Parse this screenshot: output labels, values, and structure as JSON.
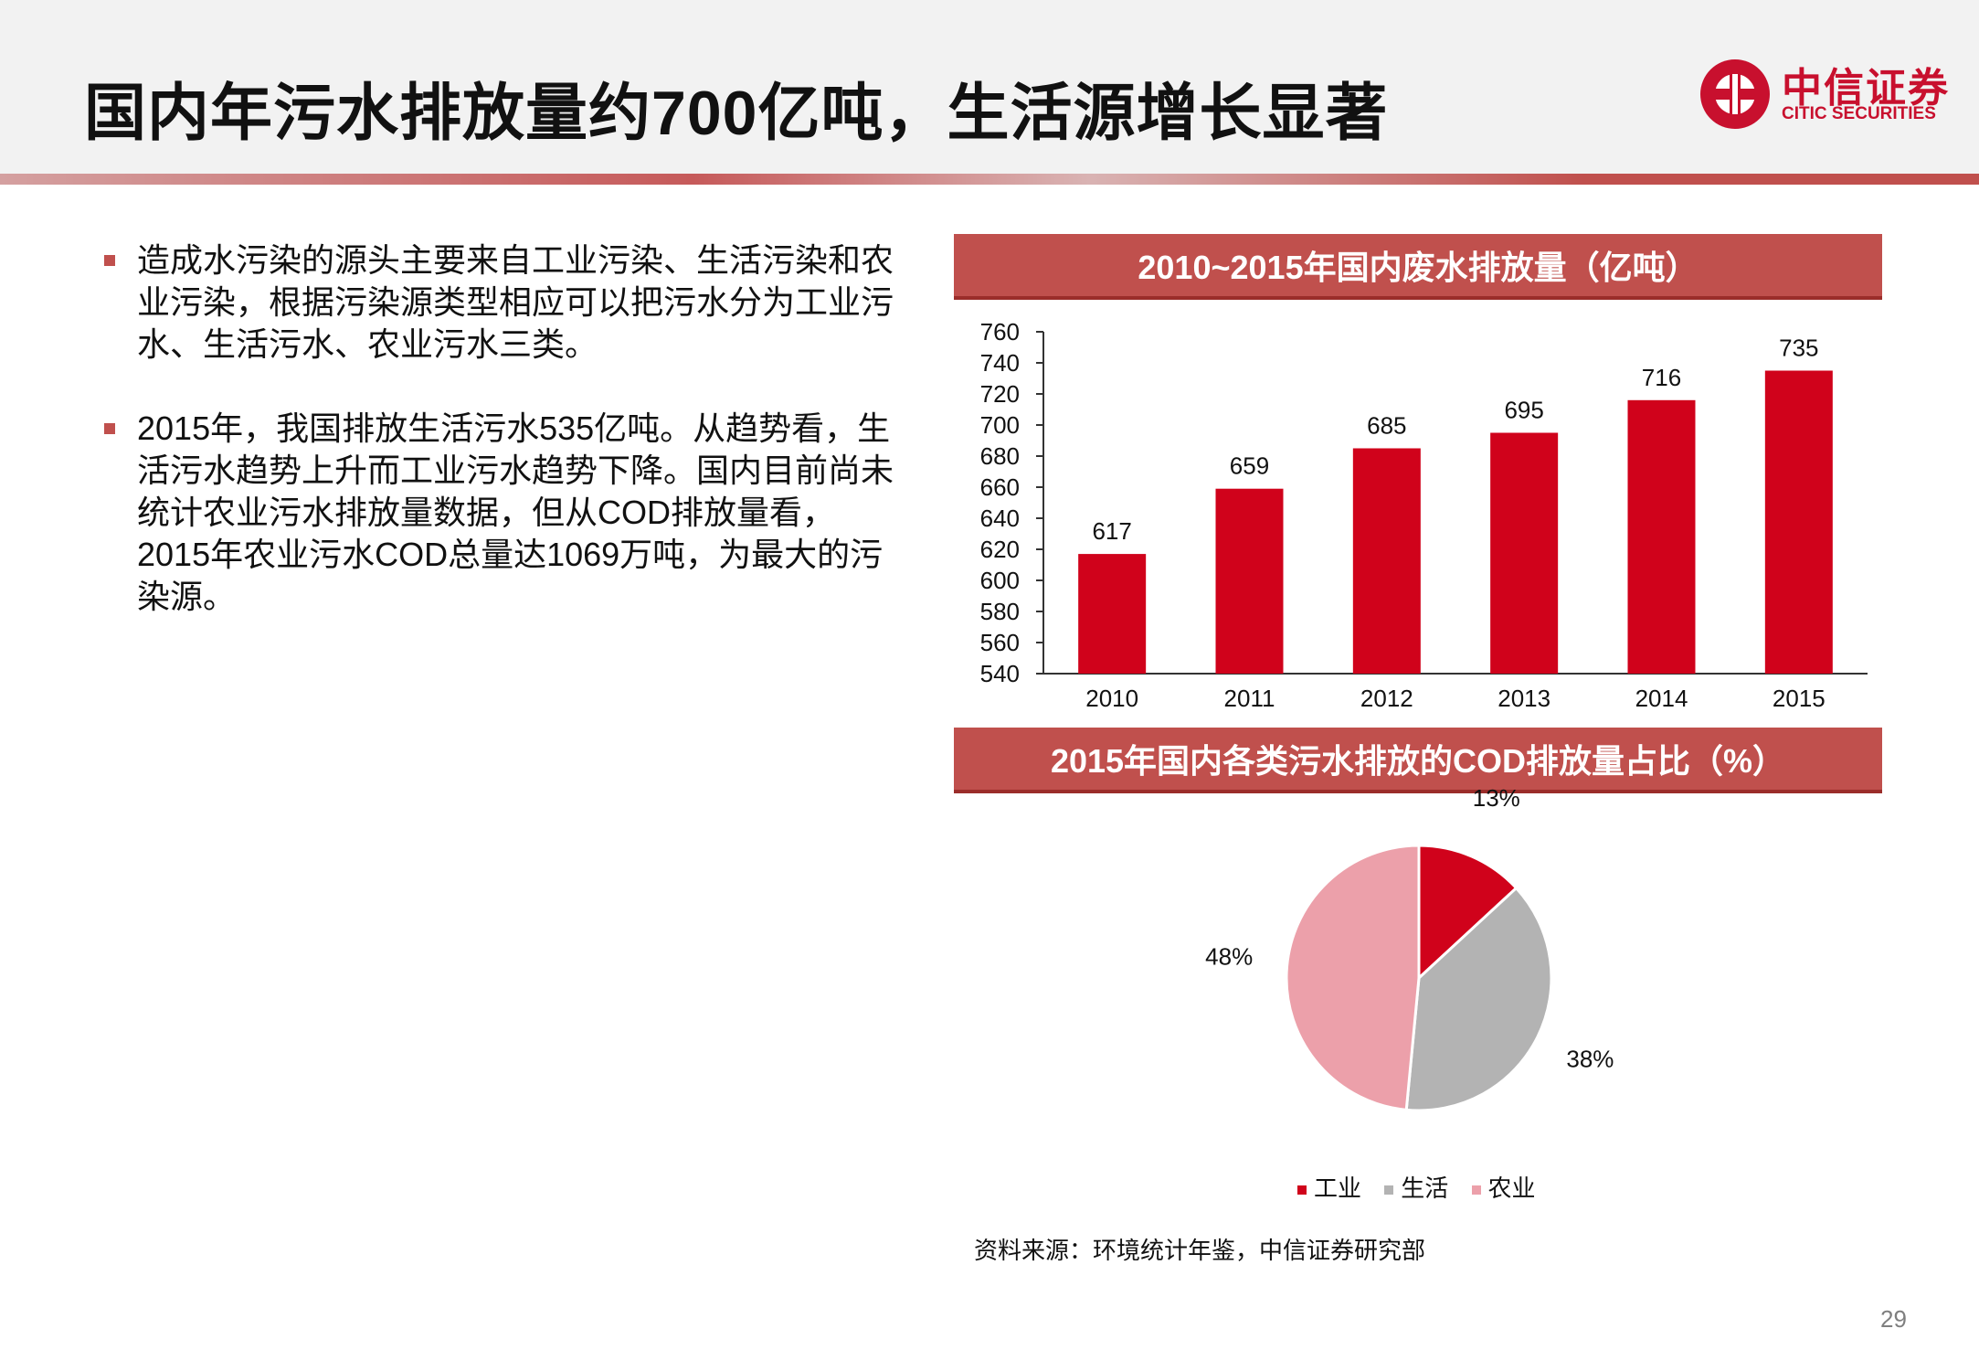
{
  "header": {
    "title": "国内年污水排放量约700亿吨，生活源增长显著",
    "logo_cn": "中信证券",
    "logo_en": "CITIC SECURITIES"
  },
  "bullets": [
    "造成水污染的源头主要来自工业污染、生活污染和农业污染，根据污染源类型相应可以把污水分为工业污水、生活污水、农业污水三类。",
    "2015年，我国排放生活污水535亿吨。从趋势看，生活污水趋势上升而工业污水趋势下降。国内目前尚未统计农业污水排放量数据，但从COD排放量看，2015年农业污水COD总量达1069万吨，为最大的污染源。"
  ],
  "colors": {
    "accent": "#c0504d",
    "bar": "#d0021b",
    "industry": "#d0021b",
    "living": "#b3b3b3",
    "agriculture": "#eca0aa"
  },
  "chart_data": [
    {
      "type": "bar",
      "title": "2010~2015年国内废水排放量（亿吨）",
      "categories": [
        "2010",
        "2011",
        "2012",
        "2013",
        "2014",
        "2015"
      ],
      "values": [
        617,
        659,
        685,
        695,
        716,
        735
      ],
      "ylim": [
        540,
        760
      ],
      "yticks": [
        540,
        560,
        580,
        600,
        620,
        640,
        660,
        680,
        700,
        720,
        740,
        760
      ],
      "xlabel": "",
      "ylabel": "",
      "grid": false
    },
    {
      "type": "pie",
      "title": "2015年国内各类污水排放的COD排放量占比（%）",
      "labels": [
        "工业",
        "生活",
        "农业"
      ],
      "values": [
        13,
        38,
        48
      ],
      "value_labels": [
        "13%",
        "38%",
        "48%"
      ],
      "legend": "bottom"
    }
  ],
  "source": "资料来源：环境统计年鉴，中信证券研究部",
  "page_number": "29"
}
